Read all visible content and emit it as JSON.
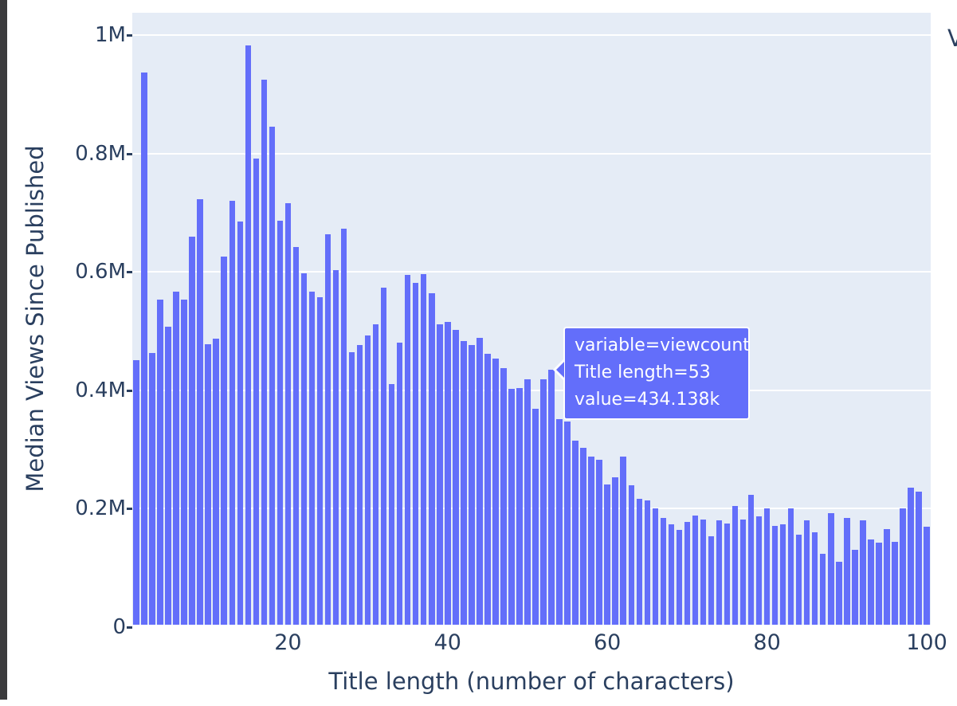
{
  "colors": {
    "accent_bar": "#636efa",
    "plot_background": "#e5ecf6",
    "gridline": "#ffffff",
    "text": "#2a3f5f",
    "page_background": "#ffffff",
    "window_edge": "#3b3b3d",
    "tooltip_background": "#636efa",
    "tooltip_text": "#ffffff"
  },
  "legend": {
    "partial_text": "V"
  },
  "tooltip": {
    "lines": [
      "variable=viewcount",
      "Title length=53",
      "value=434.138k"
    ],
    "target_title_length": 53,
    "target_value": "434.138k"
  },
  "chart_data": {
    "type": "bar",
    "title": "",
    "xlabel": "Title length (number of characters)",
    "ylabel": "Median Views Since Published",
    "series_name": "viewcount",
    "x": [
      1,
      2,
      3,
      4,
      5,
      6,
      7,
      8,
      9,
      10,
      11,
      12,
      13,
      14,
      15,
      16,
      17,
      18,
      19,
      20,
      21,
      22,
      23,
      24,
      25,
      26,
      27,
      28,
      29,
      30,
      31,
      32,
      33,
      34,
      35,
      36,
      37,
      38,
      39,
      40,
      41,
      42,
      43,
      44,
      45,
      46,
      47,
      48,
      49,
      50,
      51,
      52,
      53,
      54,
      55,
      56,
      57,
      58,
      59,
      60,
      61,
      62,
      63,
      64,
      65,
      66,
      67,
      68,
      69,
      70,
      71,
      72,
      73,
      74,
      75,
      76,
      77,
      78,
      79,
      80,
      81,
      82,
      83,
      84,
      85,
      86,
      87,
      88,
      89,
      90,
      91,
      92,
      93,
      94,
      95,
      96,
      97,
      98,
      99,
      100
    ],
    "values_millions": [
      0.451,
      0.937,
      0.463,
      0.553,
      0.507,
      0.567,
      0.553,
      0.66,
      0.723,
      0.478,
      0.487,
      0.626,
      0.72,
      0.685,
      0.983,
      0.792,
      0.925,
      0.845,
      0.686,
      0.716,
      0.642,
      0.598,
      0.566,
      0.557,
      0.663,
      0.603,
      0.673,
      0.465,
      0.476,
      0.493,
      0.511,
      0.574,
      0.411,
      0.48,
      0.595,
      0.581,
      0.596,
      0.564,
      0.511,
      0.516,
      0.502,
      0.483,
      0.476,
      0.488,
      0.462,
      0.454,
      0.437,
      0.403,
      0.404,
      0.418,
      0.369,
      0.418,
      0.434138,
      0.351,
      0.347,
      0.315,
      0.303,
      0.288,
      0.283,
      0.241,
      0.253,
      0.288,
      0.239,
      0.217,
      0.214,
      0.201,
      0.184,
      0.173,
      0.164,
      0.178,
      0.189,
      0.182,
      0.153,
      0.18,
      0.175,
      0.205,
      0.182,
      0.223,
      0.187,
      0.201,
      0.171,
      0.173,
      0.2,
      0.156,
      0.18,
      0.16,
      0.124,
      0.192,
      0.11,
      0.184,
      0.131,
      0.18,
      0.148,
      0.142,
      0.166,
      0.144,
      0.2,
      0.236,
      0.229,
      0.169
    ],
    "xlim": [
      0.5,
      100.5
    ],
    "ylim": [
      0,
      1.037
    ],
    "xticks": [
      20,
      40,
      60,
      80,
      100
    ],
    "ytick_values": [
      0,
      0.2,
      0.4,
      0.6,
      0.8,
      1
    ],
    "ytick_labels": [
      "0",
      "0.2M",
      "0.4M",
      "0.6M",
      "0.8M",
      "1M"
    ],
    "grid": "horizontal-only",
    "legend_position": "right-cut-off"
  }
}
